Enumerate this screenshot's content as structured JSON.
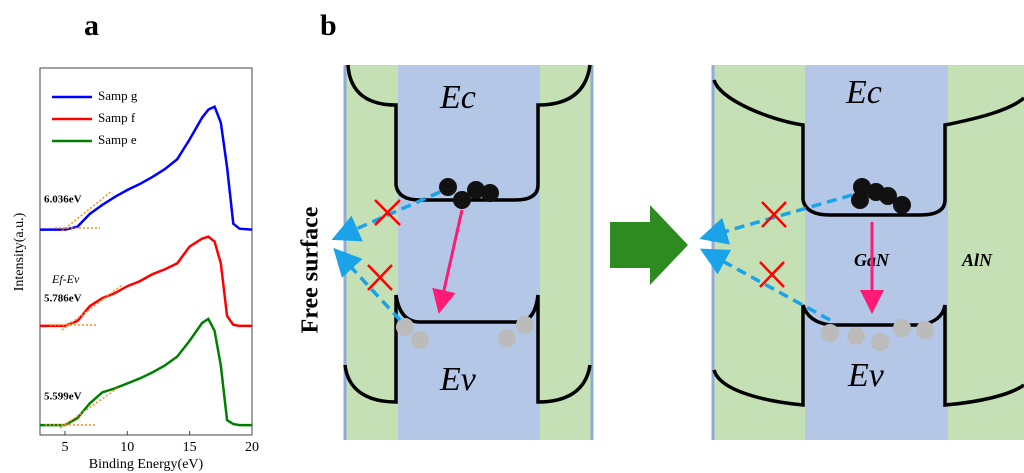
{
  "panel_labels": [
    "a",
    "b"
  ],
  "chart_data": {
    "type": "line",
    "xlabel": "Binding Energy(eV)",
    "ylabel": "Intensity(a.u.)",
    "x": [
      3,
      4,
      5,
      6,
      7,
      8,
      9,
      10,
      11,
      12,
      13,
      14,
      15,
      16,
      16.5,
      17,
      17.5,
      18,
      18.5,
      19,
      20
    ],
    "series": [
      {
        "name": "Samp g",
        "color": "#0000ff",
        "values": [
          2.07,
          2.07,
          2.07,
          2.1,
          2.23,
          2.32,
          2.4,
          2.47,
          2.53,
          2.6,
          2.68,
          2.78,
          2.98,
          3.2,
          3.28,
          3.31,
          3.15,
          2.7,
          2.13,
          2.08,
          2.07
        ]
      },
      {
        "name": "Samp f",
        "color": "#ff0000",
        "values": [
          1.1,
          1.1,
          1.1,
          1.15,
          1.3,
          1.38,
          1.43,
          1.5,
          1.55,
          1.62,
          1.67,
          1.73,
          1.9,
          1.98,
          2.0,
          1.95,
          1.73,
          1.2,
          1.11,
          1.1,
          1.1
        ]
      },
      {
        "name": "Samp e",
        "color": "#008000",
        "values": [
          0.1,
          0.1,
          0.1,
          0.17,
          0.32,
          0.43,
          0.47,
          0.52,
          0.57,
          0.63,
          0.7,
          0.79,
          0.95,
          1.13,
          1.17,
          1.05,
          0.7,
          0.15,
          0.11,
          0.1,
          0.1
        ]
      }
    ],
    "xlim": [
      3,
      20
    ],
    "xticks": [
      5,
      10,
      15,
      20
    ],
    "ylim": [
      0,
      3.7
    ],
    "legend": "upper left",
    "annotations": [
      "6.036eV",
      "Ef-Ev",
      "5.786eV",
      "5.599eV"
    ]
  },
  "diagram": {
    "free_surface": "Free surface",
    "left": {
      "ec": "Ec",
      "ev": "Ev"
    },
    "right": {
      "ec": "Ec",
      "ev": "Ev",
      "gan": "GaN",
      "aln": "AlN"
    }
  }
}
